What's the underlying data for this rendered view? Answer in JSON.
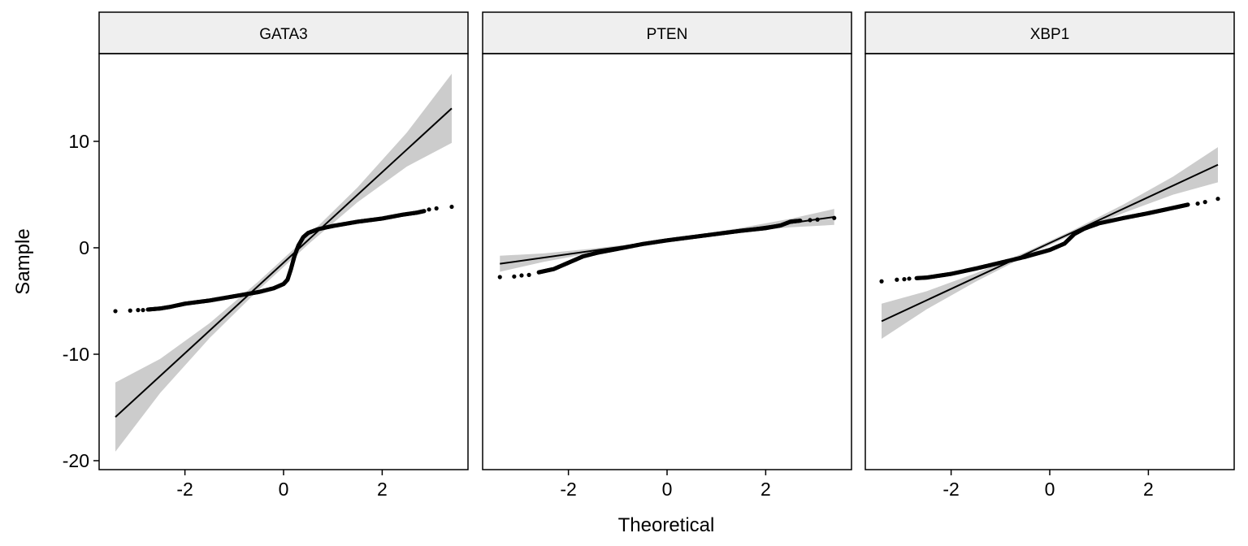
{
  "chart_data": {
    "type": "scatter",
    "subtype": "qq-facets",
    "xlabel": "Theoretical",
    "ylabel": "Sample",
    "xlim": [
      -3.74,
      3.74
    ],
    "ylim": [
      -20.84,
      18.24
    ],
    "x_ticks": [
      -2,
      0,
      2
    ],
    "x_tick_labels": [
      "-2",
      "0",
      "2"
    ],
    "y_ticks": [
      10,
      0,
      -10,
      -20
    ],
    "y_tick_labels": [
      "10",
      "0",
      "-10",
      "-20"
    ],
    "grid": false,
    "point_color": "#000000",
    "line_color": "#000000",
    "band_color": "#cccccc",
    "strip_color": "#efefef",
    "panels": [
      {
        "title": "GATA3",
        "points": [
          [
            -3.41,
            -5.95
          ],
          [
            -3.11,
            -5.9
          ],
          [
            -2.95,
            -5.85
          ],
          [
            -2.85,
            -5.85
          ],
          [
            -2.75,
            -5.8
          ],
          [
            -2.5,
            -5.7
          ],
          [
            -2.3,
            -5.55
          ],
          [
            -2.0,
            -5.25
          ],
          [
            -1.5,
            -4.95
          ],
          [
            -1.0,
            -4.55
          ],
          [
            -0.5,
            -4.15
          ],
          [
            -0.2,
            -3.8
          ],
          [
            0.0,
            -3.4
          ],
          [
            0.08,
            -3.0
          ],
          [
            0.15,
            -2.0
          ],
          [
            0.22,
            -0.8
          ],
          [
            0.3,
            0.2
          ],
          [
            0.4,
            1.0
          ],
          [
            0.5,
            1.4
          ],
          [
            0.7,
            1.75
          ],
          [
            1.0,
            2.05
          ],
          [
            1.5,
            2.45
          ],
          [
            2.0,
            2.75
          ],
          [
            2.4,
            3.1
          ],
          [
            2.7,
            3.3
          ],
          [
            2.85,
            3.45
          ],
          [
            2.95,
            3.6
          ],
          [
            3.1,
            3.7
          ],
          [
            3.41,
            3.85
          ]
        ],
        "line": [
          [
            -3.41,
            -15.9
          ],
          [
            3.41,
            13.1
          ]
        ],
        "band_x": [
          -3.41,
          -2.5,
          -1.5,
          -0.5,
          0.5,
          1.5,
          2.5,
          3.41
        ],
        "band_halfwidth": [
          3.25,
          1.6,
          0.7,
          0.4,
          0.4,
          0.7,
          1.6,
          3.25
        ]
      },
      {
        "title": "PTEN",
        "points": [
          [
            -3.39,
            -2.75
          ],
          [
            -3.1,
            -2.7
          ],
          [
            -2.95,
            -2.6
          ],
          [
            -2.8,
            -2.55
          ],
          [
            -2.6,
            -2.3
          ],
          [
            -2.3,
            -2.0
          ],
          [
            -2.0,
            -1.4
          ],
          [
            -1.7,
            -0.8
          ],
          [
            -1.4,
            -0.45
          ],
          [
            -1.0,
            -0.1
          ],
          [
            -0.5,
            0.35
          ],
          [
            0.0,
            0.7
          ],
          [
            0.5,
            1.0
          ],
          [
            1.0,
            1.3
          ],
          [
            1.5,
            1.6
          ],
          [
            2.0,
            1.85
          ],
          [
            2.3,
            2.1
          ],
          [
            2.5,
            2.45
          ],
          [
            2.7,
            2.55
          ],
          [
            2.9,
            2.6
          ],
          [
            3.05,
            2.65
          ],
          [
            3.39,
            2.8
          ]
        ],
        "line": [
          [
            -3.39,
            -1.5
          ],
          [
            3.39,
            2.9
          ]
        ],
        "band_x": [
          -3.39,
          -2.5,
          -1.5,
          -0.5,
          0.5,
          1.5,
          2.5,
          3.39
        ],
        "band_halfwidth": [
          0.75,
          0.4,
          0.2,
          0.1,
          0.1,
          0.2,
          0.4,
          0.75
        ]
      },
      {
        "title": "XBP1",
        "points": [
          [
            -3.41,
            -3.15
          ],
          [
            -3.1,
            -3.0
          ],
          [
            -2.95,
            -2.95
          ],
          [
            -2.85,
            -2.9
          ],
          [
            -2.7,
            -2.85
          ],
          [
            -2.5,
            -2.8
          ],
          [
            -2.0,
            -2.45
          ],
          [
            -1.5,
            -1.95
          ],
          [
            -1.0,
            -1.4
          ],
          [
            -0.5,
            -0.85
          ],
          [
            0.0,
            -0.2
          ],
          [
            0.3,
            0.4
          ],
          [
            0.5,
            1.3
          ],
          [
            0.7,
            1.8
          ],
          [
            1.0,
            2.3
          ],
          [
            1.5,
            2.8
          ],
          [
            2.0,
            3.25
          ],
          [
            2.5,
            3.75
          ],
          [
            2.8,
            4.05
          ],
          [
            3.0,
            4.15
          ],
          [
            3.15,
            4.3
          ],
          [
            3.41,
            4.6
          ]
        ],
        "line": [
          [
            -3.41,
            -6.9
          ],
          [
            3.41,
            7.8
          ]
        ],
        "band_x": [
          -3.41,
          -2.5,
          -1.5,
          -0.5,
          0.5,
          1.5,
          2.5,
          3.41
        ],
        "band_halfwidth": [
          1.65,
          0.85,
          0.4,
          0.2,
          0.2,
          0.4,
          0.85,
          1.65
        ]
      }
    ]
  }
}
